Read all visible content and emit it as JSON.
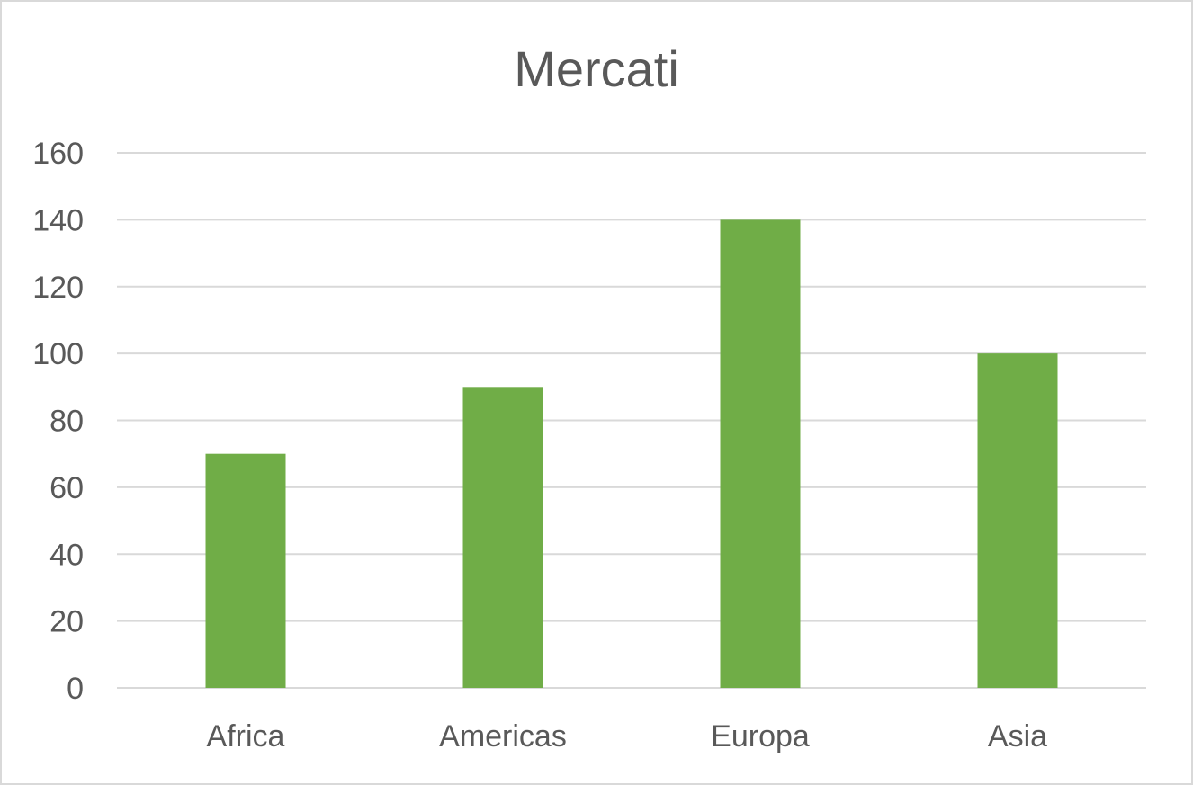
{
  "chart_data": {
    "type": "bar",
    "title": "Mercati",
    "categories": [
      "Africa",
      "Americas",
      "Europa",
      "Asia"
    ],
    "values": [
      70,
      90,
      140,
      100
    ],
    "ylim": [
      0,
      160
    ],
    "yticks": [
      "0",
      "20",
      "40",
      "60",
      "80",
      "100",
      "120",
      "140",
      "160"
    ],
    "xlabel": "",
    "ylabel": "",
    "grid": true,
    "legend": "none",
    "bar_color": "#70ad47",
    "text_color": "#595959",
    "grid_color": "#d9d9d9"
  }
}
